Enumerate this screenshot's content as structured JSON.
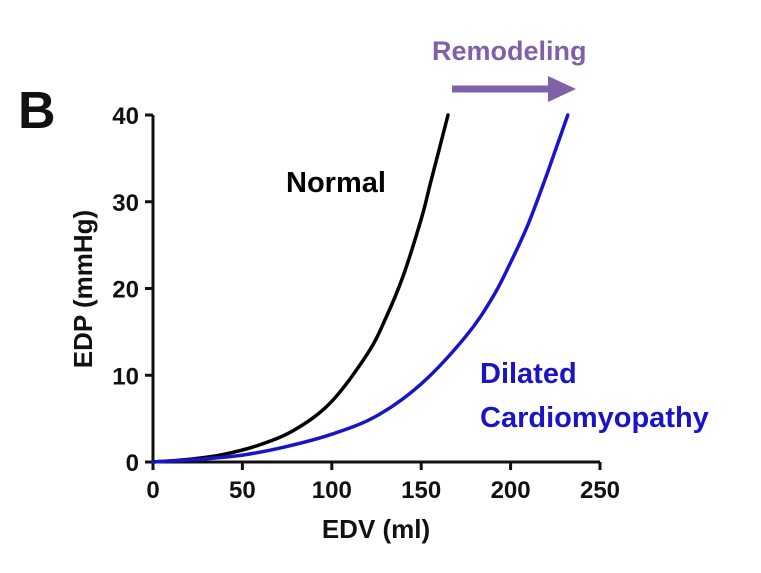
{
  "panel_label": "B",
  "chart_data": {
    "type": "line",
    "xlabel": "EDV (ml)",
    "ylabel": "EDP (mmHg)",
    "xlim": [
      0,
      250
    ],
    "ylim": [
      0,
      40
    ],
    "xticks": [
      "0",
      "50",
      "100",
      "150",
      "200",
      "250"
    ],
    "yticks": [
      "0",
      "10",
      "20",
      "30",
      "40"
    ],
    "grid": false,
    "series": [
      {
        "name": "Normal",
        "color": "#000000",
        "x": [
          0,
          20,
          40,
          60,
          80,
          100,
          120,
          130,
          140,
          150,
          155,
          160,
          165
        ],
        "y": [
          0,
          0.3,
          0.9,
          2.0,
          3.8,
          7.0,
          12.5,
          16.5,
          21.5,
          28.0,
          32.0,
          36.0,
          40.0
        ]
      },
      {
        "name": "Dilated Cardiomyopathy",
        "name_lines": [
          "Dilated",
          "Cardiomyopathy"
        ],
        "color": "#1a14c8",
        "x": [
          0,
          25,
          50,
          75,
          100,
          125,
          150,
          175,
          190,
          200,
          210,
          220,
          226,
          232
        ],
        "y": [
          0,
          0.3,
          0.8,
          1.8,
          3.2,
          5.3,
          9.0,
          14.5,
          19.0,
          23.0,
          27.5,
          33.0,
          36.5,
          40.0
        ]
      }
    ],
    "annotations": [
      {
        "text": "Remodeling",
        "color": "#8060a8",
        "arrow": "right"
      }
    ]
  }
}
